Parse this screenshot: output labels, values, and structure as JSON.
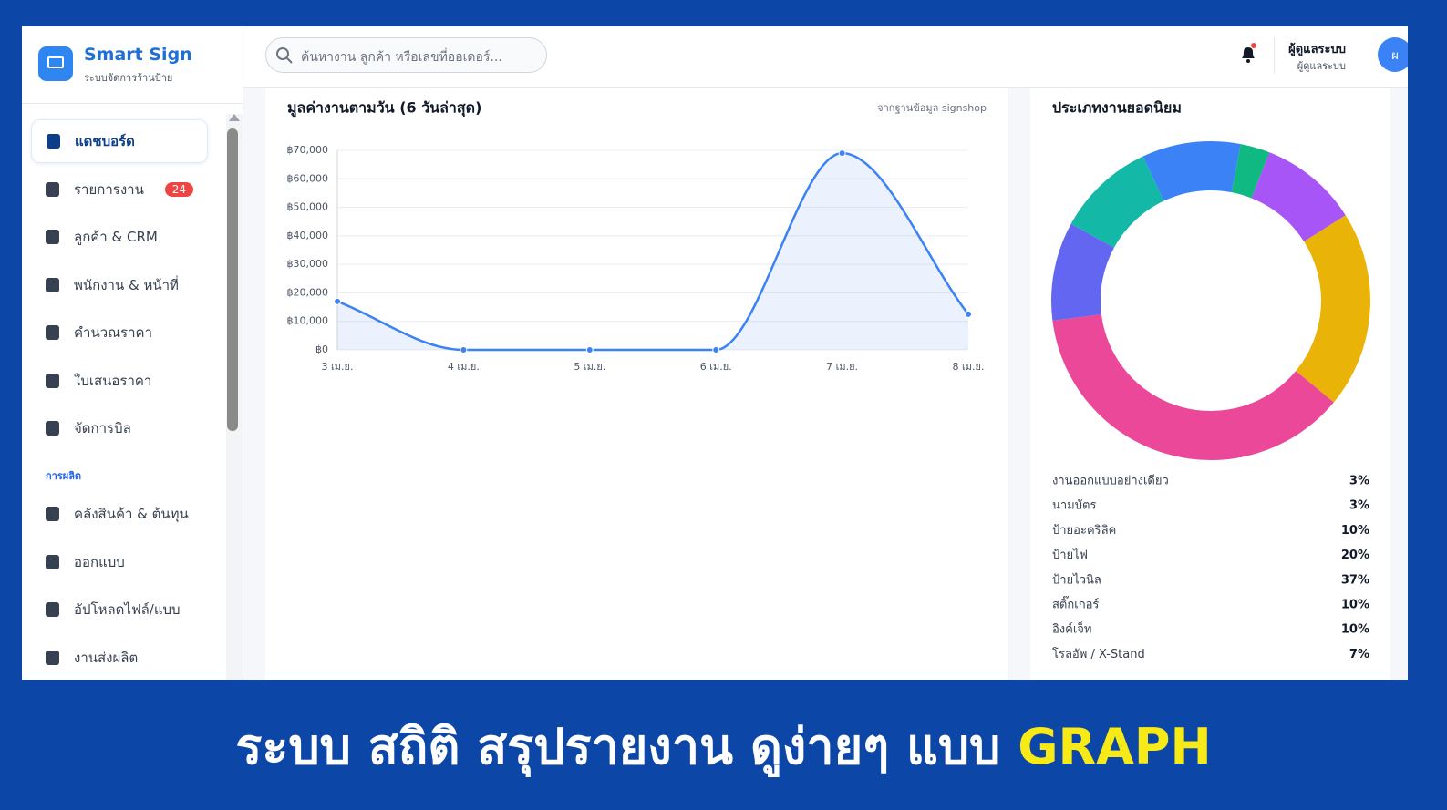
{
  "brand": {
    "name": "Smart Sign",
    "tagline": "ระบบจัดการร้านป้าย"
  },
  "search": {
    "placeholder": "ค้นหางาน ลูกค้า หรือเลขที่ออเดอร์..."
  },
  "user": {
    "name": "ผู้ดูแลระบบ",
    "role": "ผู้ดูแลระบบ",
    "initial": "ผ"
  },
  "sidebar": {
    "main": [
      {
        "label": "แดชบอร์ด"
      },
      {
        "label": "รายการงาน",
        "badge": 24
      },
      {
        "label": "ลูกค้า & CRM"
      },
      {
        "label": "พนักงาน & หน้าที่"
      },
      {
        "label": "คำนวณราคา"
      },
      {
        "label": "ใบเสนอราคา"
      },
      {
        "label": "จัดการบิล"
      }
    ],
    "section": "การผลิต",
    "production": [
      {
        "label": "คลังสินค้า & ต้นทุน"
      },
      {
        "label": "ออกแบบ"
      },
      {
        "label": "อัปโหลดไฟล์/แบบ"
      },
      {
        "label": "งานส่งผลิต"
      }
    ]
  },
  "chart_data": [
    {
      "type": "line",
      "title": "มูลค่างานตามวัน (6 วันล่าสุด)",
      "subtitle": "จากฐานข้อมูล signshop",
      "categories": [
        "3 เม.ย.",
        "4 เม.ย.",
        "5 เม.ย.",
        "6 เม.ย.",
        "7 เม.ย.",
        "8 เม.ย."
      ],
      "values": [
        17000,
        0,
        0,
        0,
        69000,
        12500
      ],
      "color": "#3b82f6",
      "ylim": [
        0,
        70000
      ],
      "yticks": [
        {
          "value": 0,
          "label": "฿0"
        },
        {
          "value": 10000,
          "label": "฿10,000"
        },
        {
          "value": 20000,
          "label": "฿20,000"
        },
        {
          "value": 30000,
          "label": "฿30,000"
        },
        {
          "value": 40000,
          "label": "฿40,000"
        },
        {
          "value": 50000,
          "label": "฿50,000"
        },
        {
          "value": 60000,
          "label": "฿60,000"
        },
        {
          "value": 70000,
          "label": "฿70,000"
        }
      ],
      "grid": true
    },
    {
      "type": "donut",
      "title": "ประเภทงานยอดนิยม",
      "categories": [
        "งานออกแบบอย่างเดียว",
        "นามบัตร",
        "ป้ายอะคริลิค",
        "ป้ายไฟ",
        "ป้ายไวนิล",
        "สติ๊กเกอร์",
        "อิงค์เจ็ท",
        "โรลอัพ / X-Stand"
      ],
      "values": [
        3,
        3,
        10,
        20,
        37,
        10,
        10,
        7
      ],
      "value_labels": [
        "3%",
        "3%",
        "10%",
        "20%",
        "37%",
        "10%",
        "10%",
        "7%"
      ],
      "colors": [
        "#3b82f6",
        "#10b981",
        "#a855f7",
        "#eab308",
        "#ec4899",
        "#6366f1",
        "#14b8a6",
        "#3b82f6"
      ]
    }
  ],
  "banner": {
    "text": "ระบบ สถิติ สรุปรายงาน ดูง่ายๆ แบบ",
    "highlight": "GRAPH"
  }
}
